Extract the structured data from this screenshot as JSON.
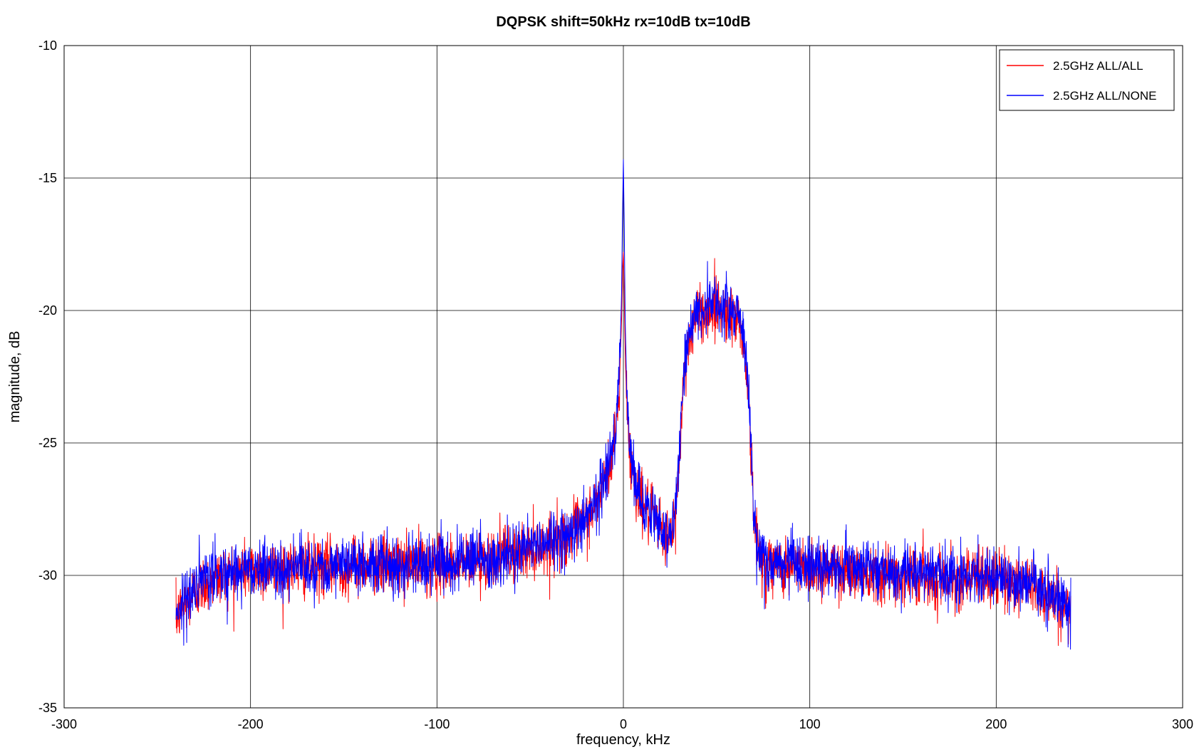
{
  "chart_data": {
    "type": "line",
    "title": "DQPSK shift=50kHz rx=10dB tx=10dB",
    "xlabel": "frequency, kHz",
    "ylabel": "magnitude, dB",
    "xlim": [
      -300,
      300
    ],
    "ylim": [
      -35,
      -10
    ],
    "xticks": [
      -300,
      -200,
      -100,
      0,
      100,
      200,
      300
    ],
    "yticks": [
      -10,
      -15,
      -20,
      -25,
      -30,
      -35
    ],
    "xtick_labels": [
      "-300",
      "-200",
      "-100",
      "0",
      "100",
      "200",
      "300"
    ],
    "ytick_labels": [
      "-10",
      "-15",
      "-20",
      "-25",
      "-30",
      "-35"
    ],
    "grid": true,
    "legend_position": "top-right",
    "series": [
      {
        "name": "2.5GHz ALL/ALL",
        "color": "#ff0000",
        "x": [
          -240,
          -235,
          -230,
          -220,
          -210,
          -200,
          -180,
          -160,
          -140,
          -120,
          -100,
          -80,
          -60,
          -50,
          -40,
          -30,
          -20,
          -15,
          -10,
          -7,
          -5,
          -3,
          -2,
          -1,
          -0.5,
          0,
          0.5,
          1,
          2,
          3,
          5,
          8,
          12,
          16,
          20,
          25,
          28,
          30,
          32,
          34,
          36,
          40,
          45,
          50,
          55,
          60,
          63,
          65,
          67,
          68,
          69,
          70,
          72,
          75,
          80,
          100,
          120,
          140,
          160,
          180,
          200,
          220,
          230,
          235,
          240
        ],
        "y": [
          -31.6,
          -31.1,
          -30.6,
          -30.1,
          -29.9,
          -29.8,
          -29.7,
          -29.7,
          -29.6,
          -29.6,
          -29.6,
          -29.5,
          -29.2,
          -29.0,
          -28.8,
          -28.5,
          -27.9,
          -27.3,
          -26.5,
          -25.8,
          -25.0,
          -23.8,
          -22.5,
          -20.5,
          -18.5,
          -17.8,
          -19.5,
          -21.8,
          -23.8,
          -25.0,
          -26.2,
          -27.0,
          -27.5,
          -27.9,
          -28.3,
          -28.6,
          -27.8,
          -25.5,
          -23.0,
          -21.5,
          -20.8,
          -20.2,
          -20.0,
          -19.9,
          -20.0,
          -20.2,
          -20.5,
          -21.5,
          -23.0,
          -24.5,
          -26.3,
          -27.8,
          -29.0,
          -29.5,
          -29.6,
          -29.7,
          -29.8,
          -29.9,
          -30.0,
          -30.1,
          -30.2,
          -30.4,
          -30.8,
          -31.2,
          -31.4
        ]
      },
      {
        "name": "2.5GHz ALL/NONE",
        "color": "#0000ff",
        "x": [
          -240,
          -235,
          -230,
          -220,
          -210,
          -200,
          -180,
          -160,
          -140,
          -120,
          -100,
          -80,
          -60,
          -50,
          -40,
          -30,
          -20,
          -15,
          -10,
          -7,
          -5,
          -3,
          -2,
          -1,
          -0.5,
          0,
          0.5,
          1,
          2,
          3,
          5,
          8,
          12,
          16,
          20,
          25,
          28,
          30,
          32,
          34,
          36,
          40,
          45,
          50,
          55,
          60,
          63,
          65,
          67,
          68,
          69,
          70,
          72,
          75,
          80,
          100,
          120,
          140,
          160,
          180,
          200,
          220,
          230,
          235,
          240
        ],
        "y": [
          -31.3,
          -30.9,
          -30.5,
          -30.0,
          -29.8,
          -29.7,
          -29.7,
          -29.6,
          -29.6,
          -29.6,
          -29.5,
          -29.4,
          -29.1,
          -28.9,
          -28.7,
          -28.4,
          -27.8,
          -27.1,
          -26.3,
          -25.6,
          -24.8,
          -23.5,
          -22.0,
          -19.5,
          -16.5,
          -14.3,
          -17.0,
          -20.5,
          -23.3,
          -24.8,
          -26.0,
          -26.9,
          -27.4,
          -27.8,
          -28.2,
          -28.5,
          -27.6,
          -25.3,
          -22.8,
          -21.3,
          -20.6,
          -20.0,
          -19.8,
          -19.7,
          -19.8,
          -20.0,
          -20.3,
          -21.3,
          -22.8,
          -24.4,
          -26.1,
          -27.7,
          -28.9,
          -29.4,
          -29.5,
          -29.6,
          -29.7,
          -29.8,
          -29.9,
          -30.0,
          -30.1,
          -30.3,
          -30.7,
          -31.1,
          -31.5
        ]
      }
    ]
  }
}
